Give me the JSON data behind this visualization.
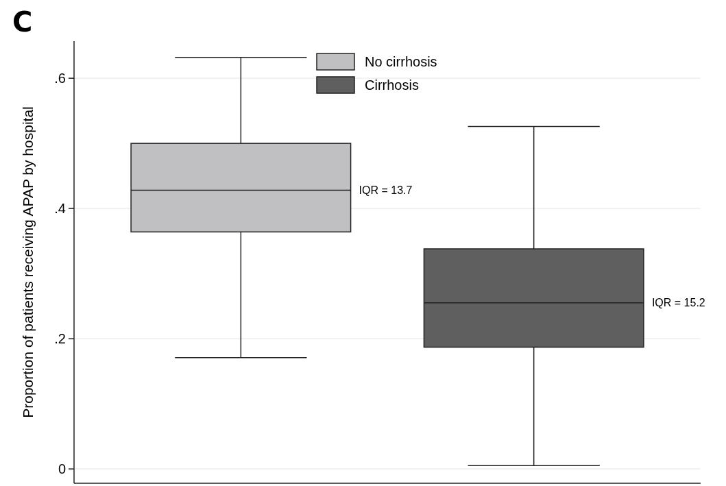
{
  "chart_data": {
    "type": "box",
    "title": "C",
    "ylabel": "Proportion of patients receiving APAP by hospital",
    "categories": [
      null
    ],
    "series": [
      {
        "name": "No cirrhosis",
        "color": "#c0c0c2",
        "boxes": [
          {
            "low": 0.171,
            "q1": 0.364,
            "median": 0.428,
            "q3": 0.5,
            "high": 0.632
          }
        ]
      },
      {
        "name": "Cirrhosis",
        "color": "#5f5f5f",
        "boxes": [
          {
            "low": 0.005,
            "q1": 0.187,
            "median": 0.255,
            "q3": 0.338,
            "high": 0.526
          }
        ]
      }
    ],
    "annotations": [
      "IQR = 13.7",
      "IQR = 15.2"
    ],
    "ylim": [
      -0.022,
      0.657
    ],
    "yticks": [
      {
        "value": 0,
        "label": "0"
      },
      {
        "value": 0.2,
        "label": ".2"
      },
      {
        "value": 0.4,
        "label": ".4"
      },
      {
        "value": 0.6,
        "label": ".6"
      }
    ],
    "grid": "y",
    "legend": "top"
  }
}
